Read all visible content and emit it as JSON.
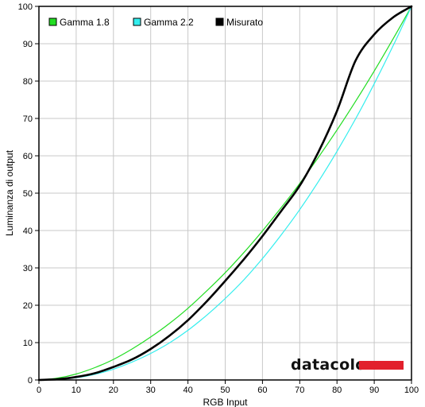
{
  "chart_data": {
    "type": "line",
    "xlabel": "RGB Input",
    "ylabel": "Luminanza di output",
    "xlim": [
      0,
      100
    ],
    "ylim": [
      0,
      100
    ],
    "x_ticks": [
      0,
      10,
      20,
      30,
      40,
      50,
      60,
      70,
      80,
      90,
      100
    ],
    "y_ticks": [
      0,
      10,
      20,
      30,
      40,
      50,
      60,
      70,
      80,
      90,
      100
    ],
    "grid": true,
    "legend_position": "top-left",
    "x": [
      0,
      5,
      10,
      15,
      20,
      25,
      30,
      35,
      40,
      45,
      50,
      55,
      60,
      65,
      70,
      75,
      80,
      85,
      90,
      95,
      100
    ],
    "series": [
      {
        "name": "Gamma 1.8",
        "color": "#22dd22",
        "values": [
          0,
          0.5,
          1.6,
          3.3,
          5.5,
          8.3,
          11.5,
          15.1,
          19.2,
          23.8,
          28.7,
          34.1,
          39.9,
          46.1,
          52.6,
          59.6,
          66.9,
          74.6,
          82.7,
          91.2,
          100
        ]
      },
      {
        "name": "Gamma 2.2",
        "color": "#33eeee",
        "values": [
          0,
          0.1,
          0.6,
          1.5,
          2.9,
          4.8,
          7.1,
          9.9,
          13.3,
          17.3,
          21.8,
          26.8,
          32.5,
          38.8,
          45.6,
          53.1,
          61.2,
          69.9,
          79.3,
          89.3,
          100
        ]
      },
      {
        "name": "Misurato",
        "color": "#000000",
        "values": [
          0,
          0.2,
          0.8,
          1.8,
          3.5,
          5.5,
          8.3,
          11.8,
          16.0,
          21.0,
          26.5,
          32.3,
          38.5,
          45.2,
          52.0,
          61.0,
          72.0,
          85.5,
          92.5,
          97.0,
          100
        ]
      }
    ],
    "brand_logo": "datacolor"
  }
}
